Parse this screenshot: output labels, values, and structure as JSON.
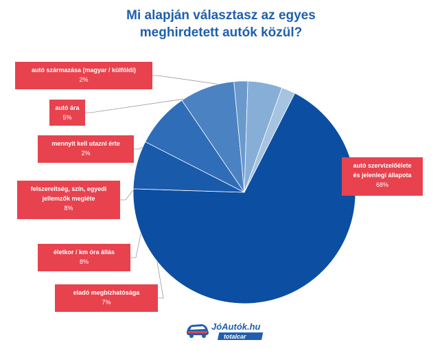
{
  "chart_data": {
    "type": "pie",
    "title": "Mi alapján választasz az egyes\nmeghirdetett autók közül?",
    "slices": [
      {
        "label": "autó szervizelőélete\nés jelenlegi állapota",
        "value": 68,
        "display": "68%",
        "color": "#0c4ea2"
      },
      {
        "label": "eladó megbízhatósága",
        "value": 7,
        "display": "7%",
        "color": "#1a5aab"
      },
      {
        "label": "életkor / km óra állás",
        "value": 8,
        "display": "8%",
        "color": "#2f6db8"
      },
      {
        "label": "felszereltség, szín, egyedi\njellemzők megléte",
        "value": 8,
        "display": "8%",
        "color": "#4a82c2"
      },
      {
        "label": "mennyit kell utazni érte",
        "value": 2,
        "display": "2%",
        "color": "#6a9acd"
      },
      {
        "label": "autó ára",
        "value": 5,
        "display": "5%",
        "color": "#86aed6"
      },
      {
        "label": "autó származása (magyar / külföldi)",
        "value": 2,
        "display": "2%",
        "color": "#a6c3e1"
      }
    ],
    "label_color": "#e8424f",
    "title_color": "#1f5fad"
  },
  "logo": {
    "brand": "JóAutók.hu",
    "sub": "totalcar"
  }
}
